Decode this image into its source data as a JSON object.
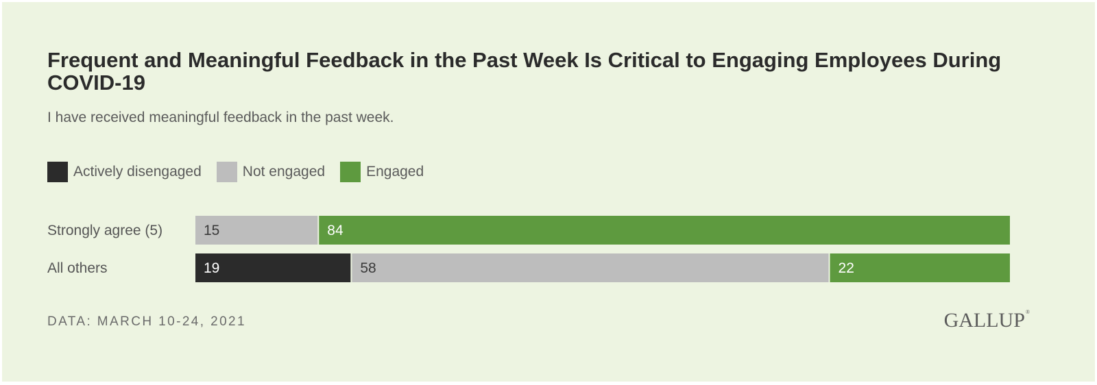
{
  "title": "Frequent and Meaningful Feedback in the Past Week Is Critical to Engaging Employees During COVID-19",
  "subtitle": "I have received meaningful feedback in the past week.",
  "footer": "DATA: MARCH 10-24, 2021",
  "logo": {
    "text": "GALLUP",
    "mark": "®"
  },
  "colors": {
    "background": "#edf4e1",
    "actively_disengaged": "#2b2b2b",
    "not_engaged": "#bdbdbd",
    "engaged": "#5e9a3f"
  },
  "chart_data": {
    "type": "bar",
    "orientation": "horizontal",
    "stacked": true,
    "title": "Frequent and Meaningful Feedback in the Past Week Is Critical to Engaging Employees During COVID-19",
    "subtitle": "I have received meaningful feedback in the past week.",
    "xlabel": "",
    "ylabel": "",
    "xlim": [
      0,
      100
    ],
    "grid": false,
    "legend_position": "top-left",
    "categories": [
      "Strongly agree (5)",
      "All others"
    ],
    "series": [
      {
        "name": "Actively disengaged",
        "color": "#2b2b2b",
        "label_color": "#ffffff",
        "values": [
          0,
          19
        ]
      },
      {
        "name": "Not engaged",
        "color": "#bdbdbd",
        "label_color": "#3a3a3a",
        "values": [
          15,
          58
        ]
      },
      {
        "name": "Engaged",
        "color": "#5e9a3f",
        "label_color": "#ffffff",
        "values": [
          84,
          22
        ]
      }
    ]
  }
}
